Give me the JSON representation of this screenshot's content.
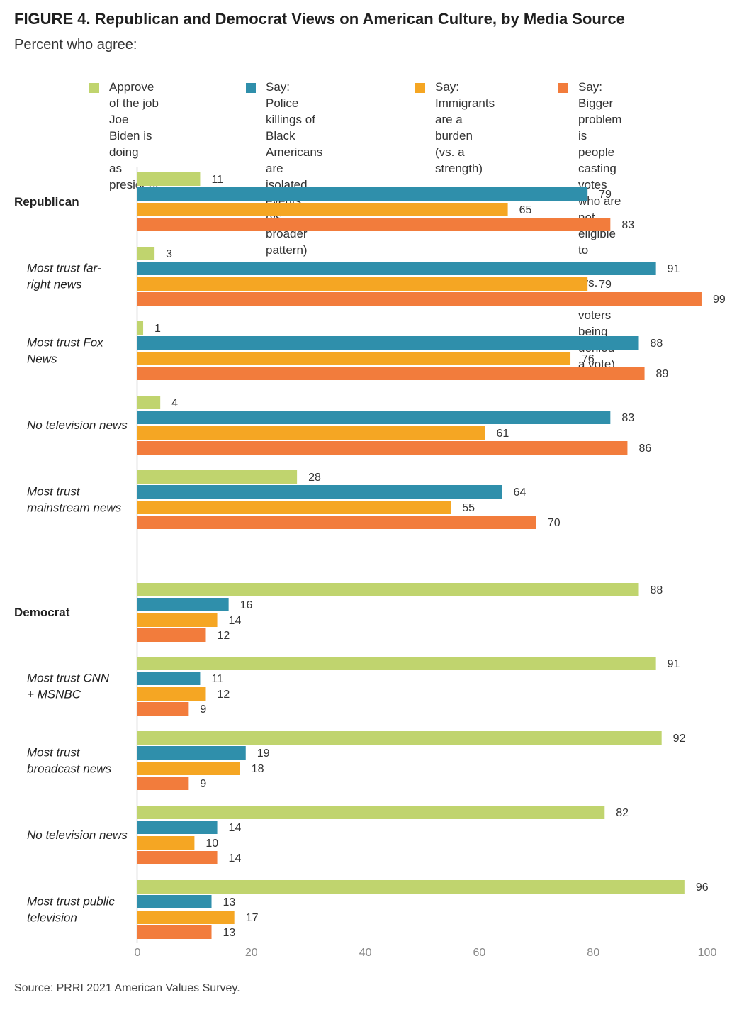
{
  "title": "FIGURE 4.  Republican and Democrat Views on American Culture, by Media Source",
  "subtitle": "Percent who agree:",
  "source": "Source: PRRI 2021 American Values Survey.",
  "colors": {
    "approve_biden": "#c0d46e",
    "police_killings": "#2f8fab",
    "immigrants_burden": "#f5a623",
    "voting_problem": "#f27c3c",
    "axis": "#cccccc",
    "tick_text": "#888888"
  },
  "legend": [
    {
      "label": "Approve of the job\nJoe Biden is doing\nas president",
      "color": "#c0d46e"
    },
    {
      "label": "Say: Police killings of\nBlack Americans are\nisolated events\n(vs. broader pattern)",
      "color": "#2f8fab"
    },
    {
      "label": "Say: Immigrants\nare a burden\n(vs. a strength)",
      "color": "#f5a623"
    },
    {
      "label": "Say: Bigger problem is\npeople casting votes\nwho are not eligible to\nvote (vs. eligible voters\nbeing denied a vote)",
      "color": "#f27c3c"
    }
  ],
  "chart_data": {
    "type": "bar",
    "orientation": "horizontal",
    "xlim": [
      0,
      100
    ],
    "x_ticks": [
      0,
      20,
      40,
      60,
      80,
      100
    ],
    "grid": false,
    "legend_position": "top",
    "series": [
      {
        "name": "Approve of the job Joe Biden is doing as president",
        "color": "#c0d46e"
      },
      {
        "name": "Say: Police killings of Black Americans are isolated events (vs. broader pattern)",
        "color": "#2f8fab"
      },
      {
        "name": "Say: Immigrants are a burden (vs. a strength)",
        "color": "#f5a623"
      },
      {
        "name": "Say: Bigger problem is people casting votes who are not eligible to vote (vs. eligible voters being denied a vote)",
        "color": "#f27c3c"
      }
    ],
    "groups": [
      {
        "label": "Republican",
        "bold": true,
        "values": [
          11,
          79,
          65,
          83
        ]
      },
      {
        "label": "Most trust far-\nright news",
        "bold": false,
        "values": [
          3,
          91,
          79,
          99
        ]
      },
      {
        "label": "Most trust Fox\nNews",
        "bold": false,
        "values": [
          1,
          88,
          76,
          89
        ]
      },
      {
        "label": "No television news",
        "bold": false,
        "values": [
          4,
          83,
          61,
          86
        ]
      },
      {
        "label": "Most trust\nmainstream news",
        "bold": false,
        "values": [
          28,
          64,
          55,
          70
        ]
      },
      {
        "label": "Democrat",
        "bold": true,
        "values": [
          88,
          16,
          14,
          12
        ]
      },
      {
        "label": "Most trust CNN\n+ MSNBC",
        "bold": false,
        "values": [
          91,
          11,
          12,
          9
        ]
      },
      {
        "label": "Most trust\nbroadcast news",
        "bold": false,
        "values": [
          92,
          19,
          18,
          9
        ]
      },
      {
        "label": "No television news",
        "bold": false,
        "values": [
          82,
          14,
          10,
          14
        ]
      },
      {
        "label": "Most trust public\ntelevision",
        "bold": false,
        "values": [
          96,
          13,
          17,
          13
        ]
      }
    ]
  }
}
